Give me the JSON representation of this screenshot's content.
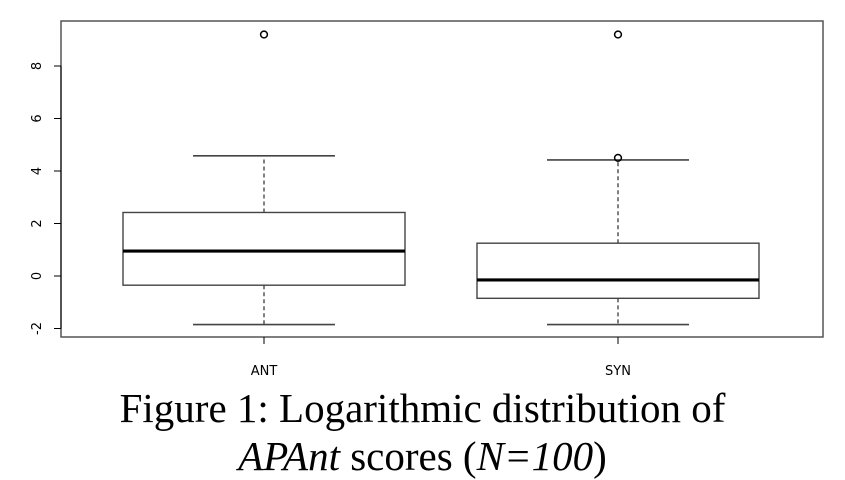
{
  "chart_data": {
    "type": "boxplot",
    "categories": [
      "ANT",
      "SYN"
    ],
    "ylim": [
      -2.2,
      9.5
    ],
    "yticks": [
      "-2",
      "0",
      "2",
      "4",
      "6",
      "8"
    ],
    "grid": false,
    "boxes": [
      {
        "name": "ANT",
        "whisker_low": -1.85,
        "q1": -0.35,
        "median": 0.95,
        "q3": 2.42,
        "whisker_high": 4.58,
        "outliers": [
          9.2
        ]
      },
      {
        "name": "SYN",
        "whisker_low": -1.85,
        "q1": -0.85,
        "median": -0.15,
        "q3": 1.25,
        "whisker_high": 4.42,
        "outliers": [
          4.5,
          9.2
        ]
      }
    ]
  },
  "caption": {
    "line1": "Figure 1: Logarithmic distribution of",
    "line2_italic_a": "APAnt",
    "line2_mid": " scores (",
    "line2_italic_b": "N=100",
    "line2_end": ")"
  }
}
